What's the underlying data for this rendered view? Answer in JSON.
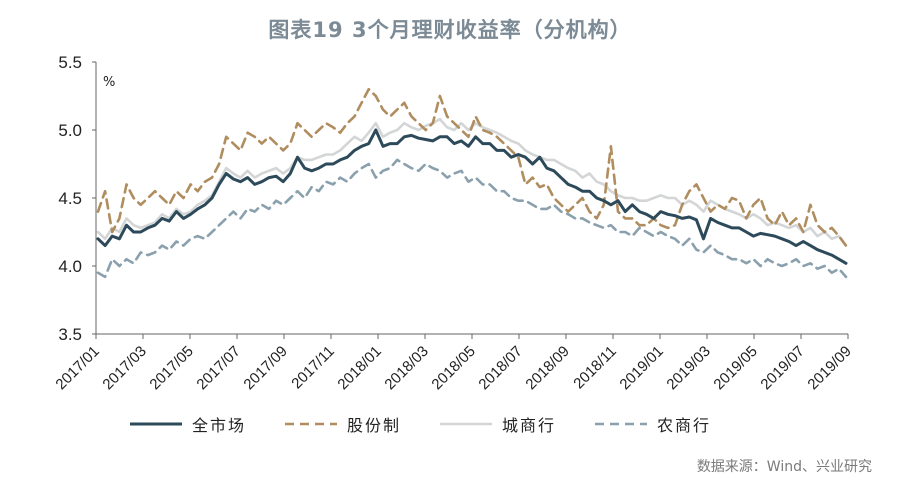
{
  "title": "图表19  3个月理财收益率（分机构）",
  "source": "数据来源：Wind、兴业研究",
  "chart_data": {
    "type": "line",
    "unit_label": "%",
    "ylim": [
      3.5,
      5.5
    ],
    "yticks": [
      "3.5",
      "4.0",
      "4.5",
      "5.0",
      "5.5"
    ],
    "x_start": "2017-01",
    "x_end": "2019-09",
    "xticks": [
      "2017/01",
      "2017/03",
      "2017/05",
      "2017/07",
      "2017/09",
      "2017/11",
      "2018/01",
      "2018/03",
      "2018/05",
      "2018/07",
      "2018/09",
      "2018/11",
      "2019/01",
      "2019/03",
      "2019/05",
      "2019/07",
      "2019/09"
    ],
    "legend_position": "bottom",
    "grid": false,
    "series": [
      {
        "name": "全市场",
        "color": "#2d4a5a",
        "dash": "solid",
        "values": [
          4.2,
          4.15,
          4.22,
          4.2,
          4.3,
          4.25,
          4.25,
          4.28,
          4.3,
          4.35,
          4.33,
          4.4,
          4.35,
          4.38,
          4.42,
          4.45,
          4.5,
          4.6,
          4.68,
          4.64,
          4.62,
          4.65,
          4.6,
          4.62,
          4.65,
          4.66,
          4.62,
          4.68,
          4.8,
          4.72,
          4.7,
          4.72,
          4.75,
          4.75,
          4.78,
          4.8,
          4.85,
          4.88,
          4.9,
          5.0,
          4.88,
          4.9,
          4.9,
          4.95,
          4.96,
          4.94,
          4.93,
          4.92,
          4.95,
          4.95,
          4.9,
          4.92,
          4.88,
          4.95,
          4.9,
          4.9,
          4.85,
          4.85,
          4.8,
          4.82,
          4.8,
          4.75,
          4.8,
          4.72,
          4.7,
          4.65,
          4.6,
          4.58,
          4.55,
          4.55,
          4.5,
          4.48,
          4.45,
          4.48,
          4.4,
          4.45,
          4.4,
          4.38,
          4.35,
          4.4,
          4.38,
          4.37,
          4.35,
          4.36,
          4.34,
          4.2,
          4.35,
          4.32,
          4.3,
          4.28,
          4.28,
          4.25,
          4.22,
          4.24,
          4.23,
          4.22,
          4.2,
          4.18,
          4.15,
          4.18,
          4.15,
          4.12,
          4.1,
          4.08,
          4.05,
          4.02
        ]
      },
      {
        "name": "股份制",
        "color": "#b08d5e",
        "dash": "dashed",
        "values": [
          4.4,
          4.55,
          4.25,
          4.35,
          4.6,
          4.5,
          4.45,
          4.5,
          4.55,
          4.5,
          4.45,
          4.55,
          4.5,
          4.6,
          4.55,
          4.62,
          4.65,
          4.75,
          4.95,
          4.9,
          4.85,
          4.98,
          4.95,
          4.9,
          4.95,
          4.9,
          4.85,
          4.9,
          5.05,
          5.0,
          4.95,
          5.0,
          5.05,
          5.02,
          4.98,
          5.05,
          5.1,
          5.2,
          5.3,
          5.25,
          5.15,
          5.1,
          5.15,
          5.2,
          5.1,
          5.05,
          5.0,
          5.05,
          5.25,
          5.1,
          5.05,
          5.0,
          4.95,
          5.1,
          5.0,
          4.98,
          4.95,
          4.9,
          4.85,
          4.8,
          4.6,
          4.65,
          4.58,
          4.6,
          4.5,
          4.45,
          4.4,
          4.45,
          4.5,
          4.4,
          4.35,
          4.45,
          4.88,
          4.4,
          4.35,
          4.35,
          4.3,
          4.3,
          4.35,
          4.3,
          4.28,
          4.3,
          4.45,
          4.55,
          4.6,
          4.5,
          4.4,
          4.45,
          4.42,
          4.5,
          4.48,
          4.35,
          4.45,
          4.5,
          4.35,
          4.3,
          4.4,
          4.3,
          4.35,
          4.25,
          4.45,
          4.3,
          4.25,
          4.28,
          4.22,
          4.15
        ]
      },
      {
        "name": "城商行",
        "color": "#d3d5d6",
        "dash": "solid",
        "values": [
          4.25,
          4.2,
          4.28,
          4.25,
          4.35,
          4.3,
          4.28,
          4.3,
          4.32,
          4.38,
          4.35,
          4.42,
          4.38,
          4.4,
          4.45,
          4.48,
          4.52,
          4.62,
          4.72,
          4.68,
          4.65,
          4.7,
          4.65,
          4.68,
          4.7,
          4.72,
          4.68,
          4.72,
          4.8,
          4.78,
          4.78,
          4.8,
          4.82,
          4.82,
          4.85,
          4.9,
          4.95,
          4.92,
          4.98,
          5.05,
          4.95,
          4.98,
          5.0,
          5.05,
          5.02,
          5.0,
          5.03,
          5.05,
          5.08,
          5.02,
          5.0,
          5.05,
          5.0,
          5.05,
          5.02,
          5.0,
          4.98,
          4.95,
          4.92,
          4.9,
          4.85,
          4.82,
          4.8,
          4.78,
          4.78,
          4.75,
          4.72,
          4.7,
          4.65,
          4.68,
          4.62,
          4.6,
          4.55,
          4.52,
          4.5,
          4.5,
          4.48,
          4.48,
          4.5,
          4.52,
          4.5,
          4.5,
          4.45,
          4.48,
          4.45,
          4.4,
          4.48,
          4.45,
          4.42,
          4.4,
          4.38,
          4.35,
          4.38,
          4.35,
          4.3,
          4.32,
          4.3,
          4.28,
          4.3,
          4.25,
          4.28,
          4.22,
          4.25,
          4.2,
          4.22,
          4.15
        ]
      },
      {
        "name": "农商行",
        "color": "#8aa0ad",
        "dash": "dashed",
        "values": [
          3.95,
          3.92,
          4.05,
          4.0,
          4.05,
          4.02,
          4.1,
          4.08,
          4.1,
          4.15,
          4.12,
          4.18,
          4.15,
          4.2,
          4.22,
          4.2,
          4.25,
          4.3,
          4.35,
          4.4,
          4.35,
          4.42,
          4.4,
          4.45,
          4.42,
          4.48,
          4.45,
          4.5,
          4.55,
          4.5,
          4.58,
          4.55,
          4.62,
          4.6,
          4.65,
          4.62,
          4.68,
          4.72,
          4.75,
          4.65,
          4.7,
          4.72,
          4.78,
          4.75,
          4.72,
          4.7,
          4.75,
          4.72,
          4.7,
          4.65,
          4.68,
          4.7,
          4.62,
          4.65,
          4.6,
          4.6,
          4.55,
          4.55,
          4.5,
          4.48,
          4.48,
          4.45,
          4.42,
          4.42,
          4.45,
          4.4,
          4.38,
          4.35,
          4.35,
          4.32,
          4.3,
          4.28,
          4.3,
          4.25,
          4.25,
          4.22,
          4.28,
          4.25,
          4.22,
          4.25,
          4.22,
          4.2,
          4.15,
          4.2,
          4.12,
          4.1,
          4.15,
          4.1,
          4.08,
          4.05,
          4.05,
          4.02,
          4.05,
          4.0,
          4.05,
          4.02,
          4.0,
          4.02,
          4.05,
          4.0,
          4.02,
          3.98,
          4.0,
          3.95,
          3.98,
          3.92
        ]
      }
    ]
  }
}
